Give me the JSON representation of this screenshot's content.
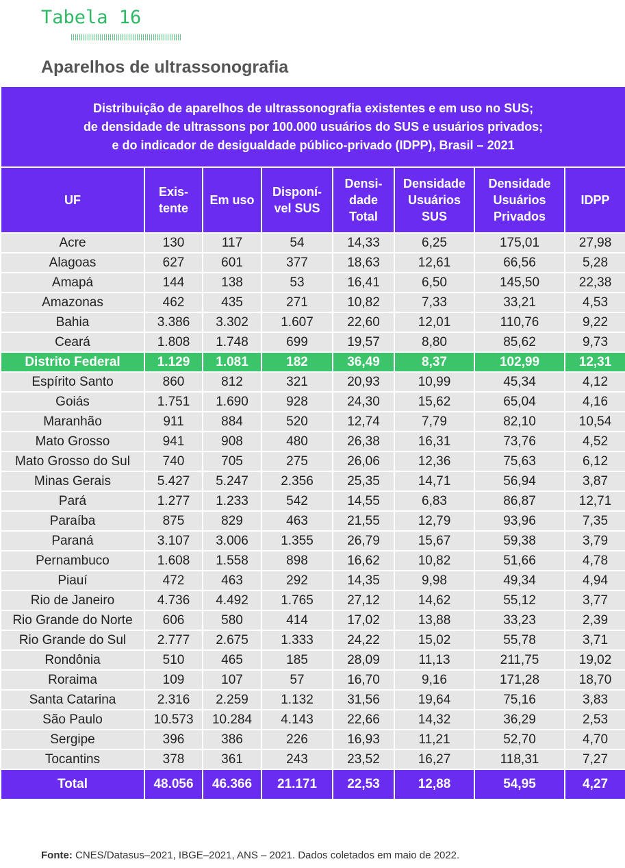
{
  "header": {
    "label": "Tabela 16",
    "title": "Aparelhos de ultrassonografia"
  },
  "table": {
    "caption": [
      "Distribuição de aparelhos de ultrassonografia existentes e em uso no SUS;",
      "de densidade de ultrassons por 100.000 usuários do SUS e usuários privados;",
      "e do indicador de desigualdade público-privado (IDPP), Brasil – 2021"
    ],
    "columns": [
      [
        "UF"
      ],
      [
        "Exis-",
        "tente"
      ],
      [
        "Em uso"
      ],
      [
        "Disponí-",
        "vel SUS"
      ],
      [
        "Densi-",
        "dade",
        "Total"
      ],
      [
        "Densidade",
        "Usuários",
        "SUS"
      ],
      [
        "Densidade",
        "Usuários",
        "Privados"
      ],
      [
        "IDPP"
      ]
    ],
    "highlight_row": 6,
    "rows": [
      [
        "Acre",
        "130",
        "117",
        "54",
        "14,33",
        "6,25",
        "175,01",
        "27,98"
      ],
      [
        "Alagoas",
        "627",
        "601",
        "377",
        "18,63",
        "12,61",
        "66,56",
        "5,28"
      ],
      [
        "Amapá",
        "144",
        "138",
        "53",
        "16,41",
        "6,50",
        "145,50",
        "22,38"
      ],
      [
        "Amazonas",
        "462",
        "435",
        "271",
        "10,82",
        "7,33",
        "33,21",
        "4,53"
      ],
      [
        "Bahia",
        "3.386",
        "3.302",
        "1.607",
        "22,60",
        "12,01",
        "110,76",
        "9,22"
      ],
      [
        "Ceará",
        "1.808",
        "1.748",
        "699",
        "19,57",
        "8,80",
        "85,62",
        "9,73"
      ],
      [
        "Distrito Federal",
        "1.129",
        "1.081",
        "182",
        "36,49",
        "8,37",
        "102,99",
        "12,31"
      ],
      [
        "Espírito Santo",
        "860",
        "812",
        "321",
        "20,93",
        "10,99",
        "45,34",
        "4,12"
      ],
      [
        "Goiás",
        "1.751",
        "1.690",
        "928",
        "24,30",
        "15,62",
        "65,04",
        "4,16"
      ],
      [
        "Maranhão",
        "911",
        "884",
        "520",
        "12,74",
        "7,79",
        "82,10",
        "10,54"
      ],
      [
        "Mato Grosso",
        "941",
        "908",
        "480",
        "26,38",
        "16,31",
        "73,76",
        "4,52"
      ],
      [
        "Mato Grosso do Sul",
        "740",
        "705",
        "275",
        "26,06",
        "12,36",
        "75,63",
        "6,12"
      ],
      [
        "Minas Gerais",
        "5.427",
        "5.247",
        "2.356",
        "25,35",
        "14,71",
        "56,94",
        "3,87"
      ],
      [
        "Pará",
        "1.277",
        "1.233",
        "542",
        "14,55",
        "6,83",
        "86,87",
        "12,71"
      ],
      [
        "Paraíba",
        "875",
        "829",
        "463",
        "21,55",
        "12,79",
        "93,96",
        "7,35"
      ],
      [
        "Paraná",
        "3.107",
        "3.006",
        "1.355",
        "26,79",
        "15,67",
        "59,38",
        "3,79"
      ],
      [
        "Pernambuco",
        "1.608",
        "1.558",
        "898",
        "16,62",
        "10,82",
        "51,66",
        "4,78"
      ],
      [
        "Piauí",
        "472",
        "463",
        "292",
        "14,35",
        "9,98",
        "49,34",
        "4,94"
      ],
      [
        "Rio de Janeiro",
        "4.736",
        "4.492",
        "1.765",
        "27,12",
        "14,62",
        "55,12",
        "3,77"
      ],
      [
        "Rio Grande do Norte",
        "606",
        "580",
        "414",
        "17,02",
        "13,88",
        "33,23",
        "2,39"
      ],
      [
        "Rio Grande do Sul",
        "2.777",
        "2.675",
        "1.333",
        "24,22",
        "15,02",
        "55,78",
        "3,71"
      ],
      [
        "Rondônia",
        "510",
        "465",
        "185",
        "28,09",
        "11,13",
        "211,75",
        "19,02"
      ],
      [
        "Roraima",
        "109",
        "107",
        "57",
        "16,70",
        "9,16",
        "171,28",
        "18,70"
      ],
      [
        "Santa Catarina",
        "2.316",
        "2.259",
        "1.132",
        "31,56",
        "19,64",
        "75,16",
        "3,83"
      ],
      [
        "São Paulo",
        "10.573",
        "10.284",
        "4.143",
        "22,66",
        "14,32",
        "36,29",
        "2,53"
      ],
      [
        "Sergipe",
        "396",
        "386",
        "226",
        "16,93",
        "11,21",
        "52,70",
        "4,70"
      ],
      [
        "Tocantins",
        "378",
        "361",
        "243",
        "23,52",
        "16,27",
        "118,31",
        "7,27"
      ]
    ],
    "total": [
      "Total",
      "48.056",
      "46.366",
      "21.171",
      "22,53",
      "12,88",
      "54,95",
      "4,27"
    ]
  },
  "source": {
    "label": "Fonte:",
    "text": "CNES/Datasus–2021, IBGE–2021, ANS – 2021. Dados coletados em maio de 2022."
  }
}
